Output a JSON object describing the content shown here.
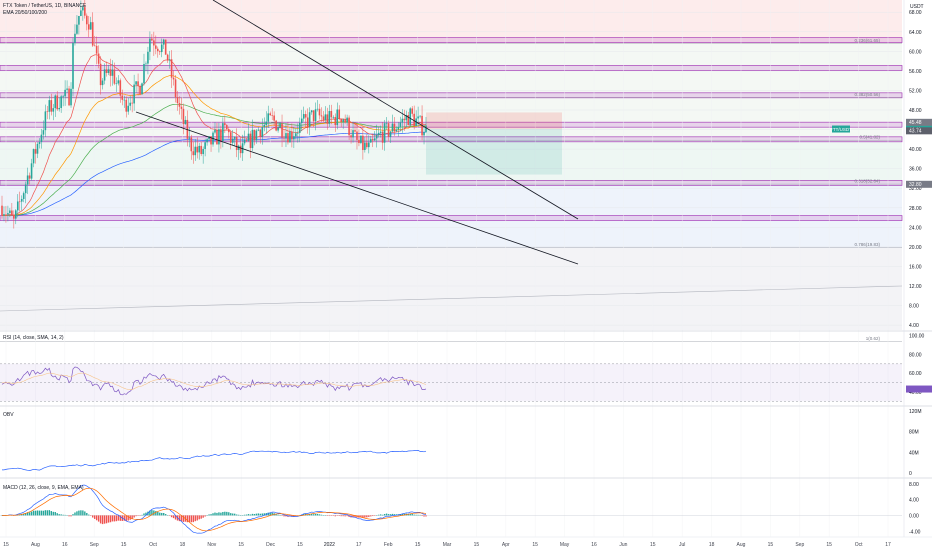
{
  "chart_data": [
    {
      "type": "candlestick",
      "symbol_header": "FTX Token / TetherUS, 1D, BINANCE",
      "indicator_label": "EMA 20/50/100/200",
      "currency_label": "USDT",
      "y_ticks": [
        "68.00",
        "64.00",
        "60.00",
        "56.00",
        "52.00",
        "48.00",
        "44.00",
        "40.00",
        "36.00",
        "32.00",
        "28.00",
        "24.00",
        "20.00",
        "16.00",
        "12.00",
        "8.00",
        "4.00"
      ],
      "y_range": [
        3.0,
        70.5
      ],
      "x_ticks": [
        "15",
        "Aug",
        "16",
        "Sep",
        "15",
        "Oct",
        "18",
        "Nov",
        "15",
        "Dec",
        "15",
        "2022",
        "17",
        "Feb",
        "15",
        "Mar",
        "15",
        "Apr",
        "15",
        "May",
        "16",
        "Jun",
        "15",
        "Jul",
        "18",
        "Aug",
        "15",
        "Sep",
        "15",
        "Oct",
        "17"
      ],
      "bars_count": 216,
      "price_labels": [
        {
          "text": "FTT/USDT",
          "value": "44.11",
          "color": "#26a69a"
        },
        {
          "text": "",
          "value": "45.48",
          "color": "#787b86"
        },
        {
          "text": "",
          "value": "43.74",
          "color": "#5d606b"
        },
        {
          "text": "",
          "value": "32.80",
          "color": "#787b86"
        }
      ],
      "fib_labels": [
        "0.236(61.65)",
        "0.382(50.56)",
        "0.5(41.82)",
        "0.618(32.84)",
        "0.786(19.83)",
        "1(0.62)"
      ],
      "position_tool": {
        "entry": 44.11,
        "stop": 47.5,
        "target": 34.8
      },
      "support_resistance_levels": [
        62.3,
        56.6,
        51.0,
        45.0,
        42.0,
        33.1,
        25.9
      ],
      "series_colors": {
        "up": "#26a69a",
        "down": "#ef5350",
        "ema20": "#ef5350",
        "ema50": "#ff9800",
        "ema100": "#4caf50",
        "ema200": "#2962ff"
      }
    },
    {
      "type": "line",
      "label": "RSI (14, close, SMA, 14, 2)",
      "y_ticks": [
        "100.00",
        "80.00",
        "60.00",
        "40.00"
      ],
      "y_range": [
        26,
        104
      ],
      "band": [
        30,
        70
      ],
      "line_color": "#7e57c2"
    },
    {
      "type": "line",
      "label": "OBV",
      "y_ticks": [
        "120M",
        "80M",
        "40M",
        "0"
      ],
      "y_range": [
        -8,
        128
      ],
      "line_color": "#2962ff"
    },
    {
      "type": "bar",
      "label": "MACD (12, 26, close, 9, EMA, EMA)",
      "y_ticks": [
        "8.00",
        "4.00",
        "0.00",
        "-4.00"
      ],
      "y_range": [
        -5.2,
        9.2
      ],
      "colors": {
        "macd": "#2962ff",
        "signal": "#ff6d00",
        "hist_up": "#26a69a",
        "hist_down": "#ef5350"
      }
    }
  ]
}
